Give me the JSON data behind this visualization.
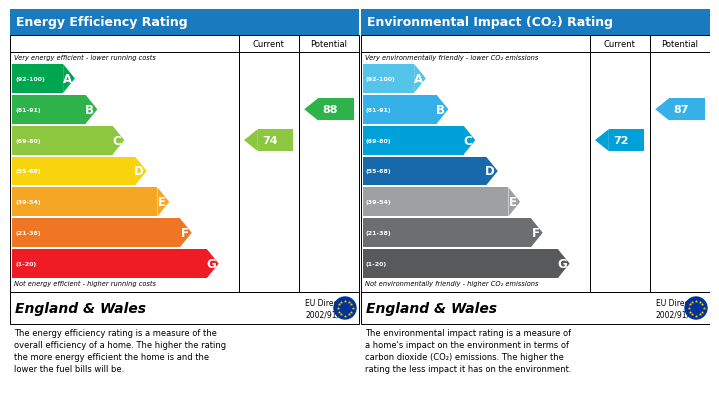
{
  "left_title": "Energy Efficiency Rating",
  "right_title": "Environmental Impact (CO₂) Rating",
  "header_bg": "#1a7abf",
  "header_text_color": "#ffffff",
  "bands_epc": [
    {
      "label": "A",
      "range": "(92-100)",
      "color": "#00a550",
      "wf": 0.28
    },
    {
      "label": "B",
      "range": "(81-91)",
      "color": "#2db34a",
      "wf": 0.38
    },
    {
      "label": "C",
      "range": "(69-80)",
      "color": "#8dc63f",
      "wf": 0.5
    },
    {
      "label": "D",
      "range": "(55-68)",
      "color": "#f8d40e",
      "wf": 0.6
    },
    {
      "label": "E",
      "range": "(39-54)",
      "color": "#f6a625",
      "wf": 0.7
    },
    {
      "label": "F",
      "range": "(21-38)",
      "color": "#ef7622",
      "wf": 0.8
    },
    {
      "label": "G",
      "range": "(1-20)",
      "color": "#ef1c25",
      "wf": 0.92
    }
  ],
  "bands_env": [
    {
      "label": "A",
      "range": "(92-100)",
      "color": "#55c4ea",
      "wf": 0.28
    },
    {
      "label": "B",
      "range": "(81-91)",
      "color": "#35b0e8",
      "wf": 0.38
    },
    {
      "label": "C",
      "range": "(69-80)",
      "color": "#00a0d8",
      "wf": 0.5
    },
    {
      "label": "D",
      "range": "(55-68)",
      "color": "#1769aa",
      "wf": 0.6
    },
    {
      "label": "E",
      "range": "(39-54)",
      "color": "#9ea0a2",
      "wf": 0.7
    },
    {
      "label": "F",
      "range": "(21-38)",
      "color": "#6d6e70",
      "wf": 0.8
    },
    {
      "label": "G",
      "range": "(1-20)",
      "color": "#58595b",
      "wf": 0.92
    }
  ],
  "epc_current": 74,
  "epc_current_band_idx": 2,
  "epc_current_color": "#8dc63f",
  "epc_potential": 88,
  "epc_potential_band_idx": 1,
  "epc_potential_color": "#2db34a",
  "env_current": 72,
  "env_current_band_idx": 2,
  "env_current_color": "#00a0d8",
  "env_potential": 87,
  "env_potential_band_idx": 1,
  "env_potential_color": "#35b0e8",
  "top_label_epc": "Very energy efficient - lower running costs",
  "bottom_label_epc": "Not energy efficient - higher running costs",
  "top_label_env": "Very environmentally friendly - lower CO₂ emissions",
  "bottom_label_env": "Not environmentally friendly - higher CO₂ emissions",
  "footer_left": "England & Wales",
  "footer_right_line1": "EU Directive",
  "footer_right_line2": "2002/91/EC",
  "desc_epc": "The energy efficiency rating is a measure of the\noverall efficiency of a home. The higher the rating\nthe more energy efficient the home is and the\nlower the fuel bills will be.",
  "desc_env": "The environmental impact rating is a measure of\na home's impact on the environment in terms of\ncarbon dioxide (CO₂) emissions. The higher the\nrating the less impact it has on the environment.",
  "bg_color": "#ffffff",
  "FW": 700,
  "FH": 391
}
